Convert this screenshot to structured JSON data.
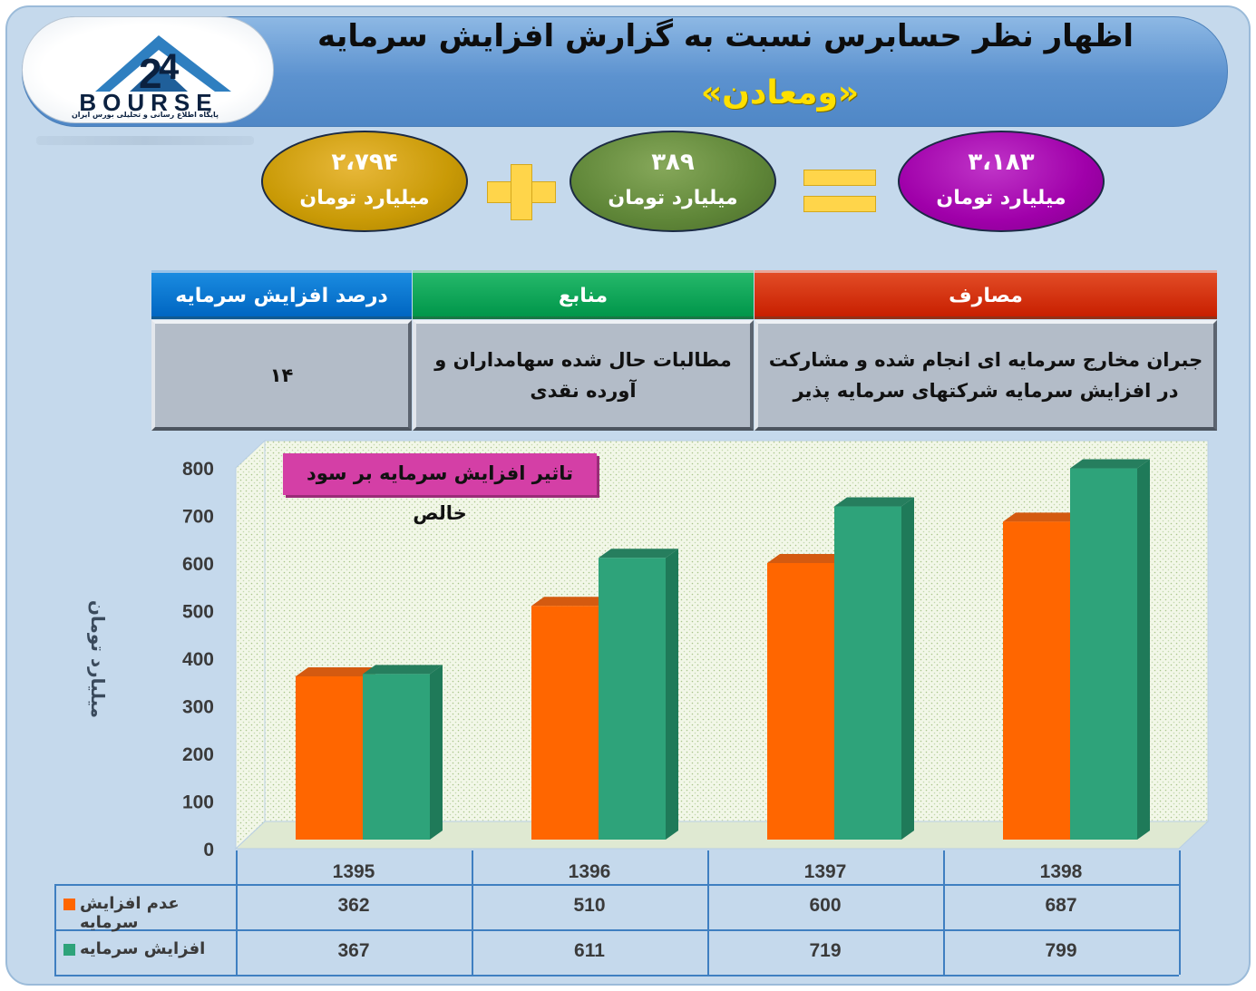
{
  "header": {
    "title": "اظهار نظر حسابرس نسبت به گزارش افزایش سرمایه",
    "symbol": "«ومعادن»",
    "logo_text": "BOURSE",
    "logo_subtitle": "پایگاه اطلاع رسانی و تحلیلی بورس ایران"
  },
  "equation": {
    "left_value": "۲،۷۹۴",
    "middle_value": "۳۸۹",
    "right_value": "۳،۱۸۳",
    "unit": "میلیارد تومان",
    "colors": {
      "left": "#c99a06",
      "middle": "#5f8638",
      "right": "#a000aa",
      "operator": "#ffd54a"
    }
  },
  "info_table": {
    "headers": {
      "uses": "مصارف",
      "sources": "منابع",
      "percent": "درصد افزایش سرمایه"
    },
    "values": {
      "uses": "جبران مخارج سرمایه ای انجام شده و مشارکت در افزایش سرمایه شرکتهای سرمایه پذیر",
      "sources": "مطالبات حال شده سهامداران و آورده نقدی",
      "percent": "۱۴"
    },
    "colors": {
      "uses": "#c81f00",
      "sources": "#00964a",
      "percent": "#0066c2"
    }
  },
  "chart_data": {
    "type": "bar",
    "title": "تاثیر افزایش سرمایه بر سود خالص",
    "ylabel": "میلیارد تومان",
    "xlabel": "",
    "categories": [
      "1395",
      "1396",
      "1397",
      "1398"
    ],
    "series": [
      {
        "name": "عدم افزایش سرمایه",
        "values": [
          362,
          510,
          600,
          687
        ],
        "color": "#ff6600"
      },
      {
        "name": "افزایش سرمایه",
        "values": [
          367,
          611,
          719,
          799
        ],
        "color": "#2ea37a"
      }
    ],
    "ylim": [
      0,
      800
    ],
    "yticks": [
      "0",
      "100",
      "200",
      "300",
      "400",
      "500",
      "600",
      "700",
      "800"
    ],
    "grid": false,
    "legend": "data-table",
    "table_values": [
      [
        "362",
        "510",
        "600",
        "687"
      ],
      [
        "367",
        "611",
        "719",
        "799"
      ]
    ]
  }
}
